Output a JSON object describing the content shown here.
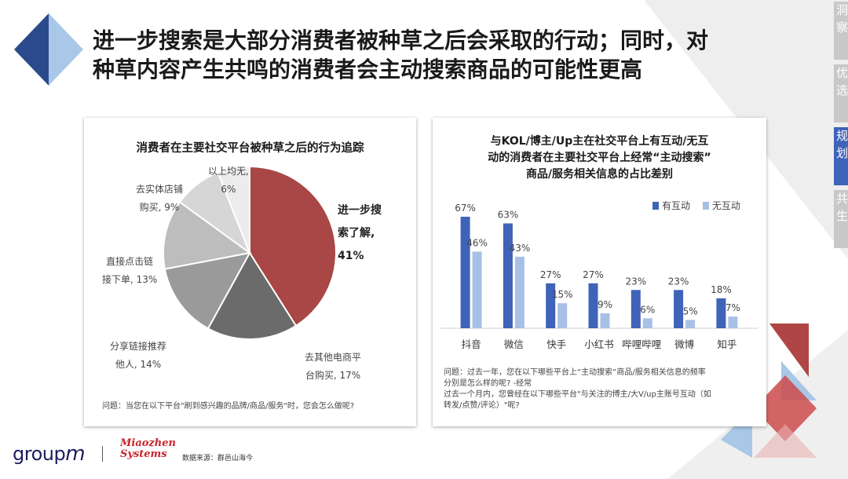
{
  "headline": {
    "line1": "进一步搜索是大部分消费者被种草之后会采取的行动；同时，对",
    "line2": "种草内容产生共鸣的消费者会主动搜索商品的可能性更高"
  },
  "side_nav": [
    {
      "label": "洞察",
      "active": false
    },
    {
      "label": "优选",
      "active": false
    },
    {
      "label": "规划",
      "active": true
    },
    {
      "label": "共生",
      "active": false
    }
  ],
  "colors": {
    "accent_dark": "#2b4a8c",
    "accent_light": "#a9c7e6",
    "accent_red": "#b04545",
    "nav_active": "#3f63b8"
  },
  "left_panel": {
    "title": "消费者在主要社交平台被种草之后的行为追踪",
    "slice_labels": {
      "search": [
        "进一步搜",
        "索了解,",
        "41%"
      ],
      "other_ecom": [
        "去其他电商平",
        "台购买, 17%"
      ],
      "share": [
        "分享链接推荐",
        "他人, 14%"
      ],
      "direct": [
        "直接点击链",
        "接下单, 13%"
      ],
      "offline": [
        "去实体店铺",
        "购买, 9%"
      ],
      "none": [
        "以上均无,",
        "6%"
      ]
    },
    "note": "问题：当您在以下平台\"刷到感兴趣的品牌/商品/服务\"时，您会怎么做呢?"
  },
  "right_panel": {
    "title_lines": [
      "与KOL/博主/Up主在社交平台上有互动/无互",
      "动的消费者在主要社交平台上经常“主动搜索”",
      "商品/服务相关信息的占比差别"
    ],
    "note_lines": [
      "问题：过去一年，您在以下哪些平台上“主动搜索”商品/服务相关信息的频率",
      "分别是怎么样的呢? -经常",
      "过去一个月内，您曾经在以下哪些平台\"与关注的博主/大V/up主账号互动（如",
      "转发/点赞/评论）\"呢?"
    ]
  },
  "footer": {
    "logo_groupm": "group",
    "logo_groupm_m": "m",
    "logo_mz_line1": "Miaozhen",
    "logo_mz_line2": "Systems",
    "separator": "|",
    "data_source": "数据来源：群邑山海今"
  },
  "chart_data": [
    {
      "type": "pie",
      "title": "消费者在主要社交平台被种草之后的行为追踪",
      "slices": [
        {
          "label": "进一步搜索了解",
          "value": 41,
          "color": "#a94646"
        },
        {
          "label": "去其他电商平台购买",
          "value": 17,
          "color": "#6b6b6b"
        },
        {
          "label": "分享链接推荐他人",
          "value": 14,
          "color": "#9a9a9a"
        },
        {
          "label": "直接点击链接下单",
          "value": 13,
          "color": "#bdbdbd"
        },
        {
          "label": "去实体店铺购买",
          "value": 9,
          "color": "#d6d6d6"
        },
        {
          "label": "以上均无",
          "value": 6,
          "color": "#ececec"
        }
      ]
    },
    {
      "type": "bar",
      "title": "与KOL/博主/Up主在社交平台上有互动/无互动的消费者在主要社交平台上经常“主动搜索”商品/服务相关信息的占比差别",
      "categories": [
        "抖音",
        "微信",
        "快手",
        "小红书",
        "哔哩哔哩",
        "微博",
        "知乎"
      ],
      "series": [
        {
          "name": "有互动",
          "values": [
            67,
            63,
            27,
            27,
            23,
            23,
            18
          ],
          "color": "#3f63b8"
        },
        {
          "name": "无互动",
          "values": [
            46,
            43,
            15,
            9,
            6,
            5,
            7
          ],
          "color": "#a9c0e6"
        }
      ],
      "value_suffix": "%",
      "ylim": [
        0,
        70
      ],
      "legend": "top-right",
      "grid": false
    }
  ]
}
